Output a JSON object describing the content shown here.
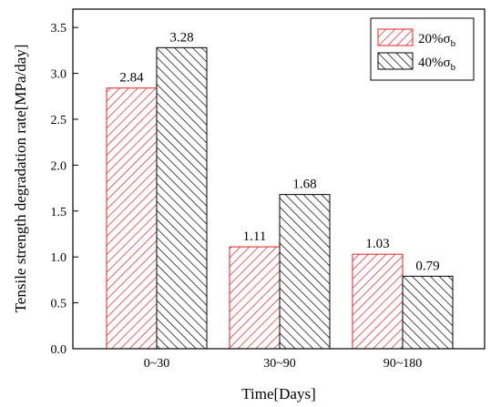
{
  "chart_data": {
    "type": "bar",
    "xlabel": "Time[Days]",
    "ylabel": "Tensile strength degradation rate[MPa/day]",
    "categories": [
      "0~30",
      "30~90",
      "90~180"
    ],
    "ylim": [
      0.0,
      3.7
    ],
    "yticks": [
      "0.0",
      "0.5",
      "1.0",
      "1.5",
      "2.0",
      "2.5",
      "3.0",
      "3.5"
    ],
    "grid": false,
    "legend_position": "top-right",
    "series": [
      {
        "name": "20%σb",
        "legend": {
          "prefix": "20%σ",
          "subscript": "b"
        },
        "values": [
          2.84,
          1.11,
          1.03
        ],
        "labels": [
          "2.84",
          "1.11",
          "1.03"
        ],
        "color": "#e02020",
        "pattern": "hatch-forward"
      },
      {
        "name": "40%σb",
        "legend": {
          "prefix": "40%σ",
          "subscript": "b"
        },
        "values": [
          3.28,
          1.68,
          0.79
        ],
        "labels": [
          "3.28",
          "1.68",
          "0.79"
        ],
        "color": "#000000",
        "pattern": "hatch-backward"
      }
    ]
  }
}
